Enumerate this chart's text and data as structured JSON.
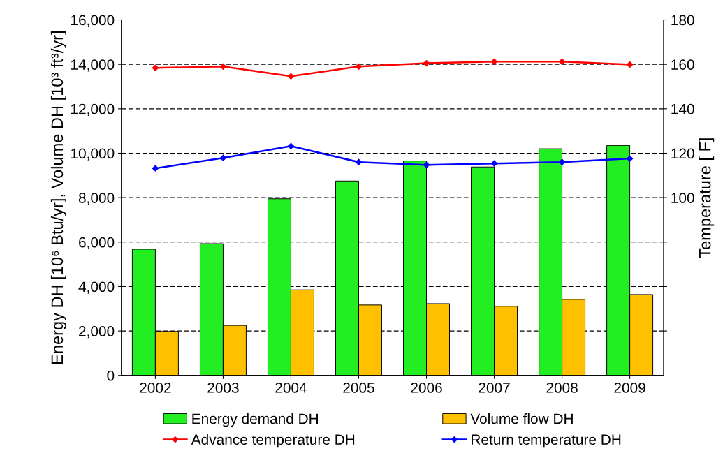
{
  "chart_data": {
    "type": "bar",
    "categories": [
      "2002",
      "2003",
      "2004",
      "2005",
      "2006",
      "2007",
      "2008",
      "2009"
    ],
    "ylabel": "Energy DH [10⁶ Btu/yr], Volume DH [10³ ft³/yr]",
    "y2label": "Temperature [ F]",
    "series": [
      {
        "name": "Energy demand DH",
        "color": "#22ee22",
        "values": [
          5680,
          5930,
          7950,
          8750,
          9650,
          9380,
          10200,
          10350
        ]
      },
      {
        "name": "Volume flow DH",
        "color": "#ffc000",
        "values": [
          1980,
          2250,
          3850,
          3170,
          3230,
          3110,
          3420,
          3640
        ]
      },
      {
        "name": "Advance temperature DH",
        "type": "line",
        "axis": "y2",
        "color": "#ff0000",
        "values": [
          158.4,
          159.0,
          154.6,
          159.0,
          160.5,
          161.2,
          161.2,
          159.9
        ]
      },
      {
        "name": "Return temperature DH",
        "type": "line",
        "axis": "y2",
        "color": "#0000ff",
        "values": [
          113.2,
          117.9,
          123.2,
          116.0,
          114.7,
          115.4,
          116.0,
          117.6
        ]
      }
    ],
    "ylim": [
      0,
      16000
    ],
    "yticks": [
      0,
      {
        "value": 2000,
        "label": "2,000"
      },
      {
        "value": 4000,
        "label": "4,000"
      },
      {
        "value": 6000,
        "label": "6,000"
      },
      {
        "value": 8000,
        "label": "8,000"
      },
      {
        "value": 10000,
        "label": "10,000"
      },
      {
        "value": 12000,
        "label": "12,000"
      },
      {
        "value": 14000,
        "label": "14,000"
      },
      {
        "value": 16000,
        "label": "16,000"
      }
    ],
    "y2lim": [
      20,
      180
    ],
    "y2ticks": [
      {
        "value": 40,
        "label": null
      },
      {
        "value": 60,
        "label": null
      },
      {
        "value": 80,
        "label": null
      },
      100,
      120,
      140,
      160,
      180
    ],
    "grid": "y",
    "legend": "bottom",
    "marker": "diamond",
    "line_style": "solid"
  }
}
